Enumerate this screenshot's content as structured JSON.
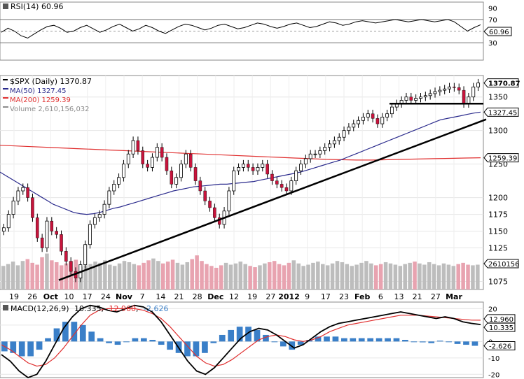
{
  "chart_data": {
    "type": "candlestick",
    "title": "$SPX (Daily) 1370.87",
    "legend": [
      {
        "label": "$SPX (Daily) 1370.87",
        "color": "#000000"
      },
      {
        "label": "MA(50) 1327.45",
        "color": "#2a2a8c"
      },
      {
        "label": "MA(200) 1259.39",
        "color": "#e03030"
      },
      {
        "label": "Volume 2,610,156,032",
        "color": "#8c8c8c"
      }
    ],
    "rsi": {
      "label": "RSI(14) 60.96",
      "value": 60.96,
      "ylim": [
        0,
        100
      ],
      "ticks": [
        "90",
        "70",
        "50",
        "30"
      ],
      "levels": [
        70,
        50,
        30
      ],
      "badge": "60.96",
      "values": [
        48,
        55,
        50,
        42,
        38,
        45,
        52,
        58,
        60,
        55,
        48,
        50,
        56,
        60,
        54,
        48,
        52,
        58,
        62,
        56,
        50,
        54,
        60,
        56,
        50,
        46,
        52,
        58,
        62,
        60,
        56,
        52,
        55,
        60,
        62,
        58,
        54,
        56,
        60,
        64,
        62,
        58,
        55,
        58,
        62,
        64,
        60,
        56,
        58,
        62,
        66,
        64,
        60,
        62,
        66,
        68,
        66,
        64,
        66,
        68,
        70,
        68,
        66,
        68,
        70,
        68,
        66,
        68,
        70,
        66,
        58,
        50,
        56,
        61
      ]
    },
    "price": {
      "ylim": [
        1063,
        1382
      ],
      "ticks": [
        "1350",
        "1300",
        "1250",
        "1200",
        "1175",
        "1150",
        "1125",
        "1075"
      ],
      "badges": [
        "1370.87",
        "1327.45",
        "1259.39",
        "2610156"
      ],
      "volume_max": 6.2,
      "closes": [
        1155,
        1175,
        1195,
        1210,
        1215,
        1200,
        1170,
        1140,
        1125,
        1165,
        1150,
        1145,
        1120,
        1105,
        1090,
        1080,
        1100,
        1130,
        1160,
        1170,
        1175,
        1190,
        1210,
        1220,
        1230,
        1250,
        1265,
        1285,
        1270,
        1250,
        1245,
        1260,
        1275,
        1260,
        1240,
        1220,
        1230,
        1250,
        1265,
        1245,
        1225,
        1210,
        1195,
        1185,
        1170,
        1160,
        1180,
        1210,
        1240,
        1245,
        1250,
        1245,
        1240,
        1245,
        1250,
        1235,
        1225,
        1220,
        1215,
        1210,
        1225,
        1240,
        1250,
        1258,
        1265,
        1265,
        1270,
        1275,
        1280,
        1285,
        1290,
        1300,
        1305,
        1310,
        1315,
        1320,
        1325,
        1318,
        1310,
        1320,
        1325,
        1335,
        1340,
        1345,
        1350,
        1345,
        1348,
        1350,
        1352,
        1355,
        1358,
        1360,
        1362,
        1365,
        1364,
        1360,
        1340,
        1350,
        1365,
        1370.87
      ],
      "ma50": [
        1238,
        1232,
        1226,
        1220,
        1214,
        1208,
        1202,
        1196,
        1190,
        1186,
        1182,
        1178,
        1176,
        1175,
        1176,
        1178,
        1181,
        1184,
        1186,
        1189,
        1192,
        1195,
        1198,
        1201,
        1204,
        1207,
        1210,
        1212,
        1214,
        1216,
        1217,
        1218,
        1219,
        1220,
        1220,
        1221,
        1222,
        1223,
        1224,
        1226,
        1228,
        1230,
        1232,
        1234,
        1236,
        1238,
        1241,
        1244,
        1247,
        1250,
        1253,
        1256,
        1260,
        1264,
        1268,
        1272,
        1276,
        1280,
        1284,
        1288,
        1292,
        1296,
        1300,
        1304,
        1308,
        1312,
        1316,
        1318,
        1320,
        1322,
        1324,
        1326,
        1327.45
      ],
      "ma200": [
        1278,
        1277,
        1276,
        1275,
        1274,
        1273,
        1272,
        1271,
        1270,
        1269,
        1268,
        1267,
        1266,
        1265,
        1264,
        1263,
        1262,
        1261,
        1260,
        1259,
        1258,
        1257,
        1256.5,
        1256,
        1256,
        1256.5,
        1257,
        1257.5,
        1258,
        1258.5,
        1259,
        1259.39
      ],
      "trendline_major": [
        [
          1077,
          "start"
        ],
        [
          1325,
          "end"
        ]
      ],
      "trendline_support": 1340,
      "volume": [
        3.8,
        4.1,
        4.5,
        3.9,
        4.6,
        4.9,
        4.3,
        4.0,
        5.2,
        5.8,
        4.7,
        4.4,
        3.9,
        4.2,
        4.6,
        4.8,
        3.7,
        3.9,
        4.1,
        4.5,
        4.3,
        4.7,
        4.0,
        3.8,
        4.2,
        4.6,
        4.4,
        4.1,
        3.9,
        4.3,
        4.7,
        5.0,
        4.6,
        4.2,
        4.5,
        4.8,
        4.3,
        4.0,
        4.4,
        4.9,
        5.5,
        4.6,
        4.1,
        3.8,
        3.5,
        3.9,
        4.3,
        4.0,
        4.2,
        4.5,
        4.1,
        3.8,
        3.6,
        3.9,
        4.2,
        4.4,
        4.6,
        4.1,
        3.9,
        4.3,
        4.7,
        4.2,
        3.8,
        4.0,
        4.3,
        4.5,
        4.1,
        3.9,
        4.2,
        4.6,
        4.4,
        4.1,
        3.8,
        4.0,
        4.3,
        4.6,
        4.2,
        3.9,
        4.1,
        4.4,
        4.2,
        4.0,
        3.8,
        4.1,
        4.3,
        4.5,
        4.2,
        4.0,
        4.4,
        4.1,
        3.9,
        4.2,
        4.0,
        3.8,
        4.1,
        4.3,
        4.0,
        3.9,
        4.0
      ]
    },
    "x_labels": [
      "19",
      "26",
      "Oct",
      "10",
      "17",
      "24",
      "Nov",
      "7",
      "14",
      "21",
      "28",
      "Dec",
      "12",
      "19",
      "27",
      "2012",
      "9",
      "17",
      "23",
      "Feb",
      "6",
      "13",
      "21",
      "27",
      "Mar"
    ],
    "x_labels_bold": [
      "Oct",
      "Nov",
      "Dec",
      "2012",
      "Feb",
      "Mar"
    ],
    "macd": {
      "label": "MACD(12,26,9)",
      "macd_value": "10.335",
      "signal_value": "12.960",
      "hist_value": "-2.626",
      "macd_color": "#000000",
      "signal_color": "#e03030",
      "hist_color": "#3a7fc8",
      "ylim": [
        -22,
        24
      ],
      "ticks": [
        "20",
        "10",
        "0",
        "-10",
        "-20"
      ],
      "badges": [
        "12.960",
        "10.335",
        "-2.626"
      ],
      "macd_line": [
        -8,
        -12,
        -18,
        -22,
        -20,
        -12,
        -2,
        8,
        15,
        20,
        22,
        21,
        19,
        18,
        20,
        22,
        21,
        18,
        12,
        4,
        -4,
        -12,
        -18,
        -20,
        -16,
        -10,
        -4,
        2,
        6,
        8,
        7,
        4,
        0,
        -4,
        -2,
        2,
        6,
        9,
        11,
        12,
        13,
        14,
        15,
        16,
        17,
        18,
        17,
        16,
        15,
        14,
        15,
        14,
        12,
        11,
        10.335
      ],
      "signal_line": [
        -2,
        -5,
        -9,
        -13,
        -15,
        -14,
        -10,
        -4,
        3,
        10,
        16,
        19,
        20,
        20,
        20,
        20,
        19,
        17,
        14,
        9,
        3,
        -3,
        -9,
        -13,
        -15,
        -14,
        -11,
        -7,
        -3,
        1,
        3,
        4,
        3,
        1,
        0,
        1,
        3,
        6,
        8,
        10,
        11,
        12,
        13,
        14,
        15,
        16,
        16,
        16,
        15.5,
        15,
        14.5,
        14,
        13.5,
        13,
        12.96
      ],
      "histogram": [
        -6,
        -7,
        -9,
        -9,
        -5,
        2,
        8,
        12,
        12,
        10,
        6,
        2,
        -1,
        -2,
        0,
        2,
        2,
        1,
        -2,
        -5,
        -7,
        -9,
        -9,
        -7,
        -1,
        4,
        7,
        9,
        9,
        7,
        4,
        0,
        -3,
        -5,
        -2,
        1,
        3,
        3,
        3,
        2,
        2,
        2,
        2,
        2,
        2,
        2,
        1,
        0,
        -0.5,
        -1,
        0.5,
        0,
        -1.5,
        -2,
        -2.626
      ]
    }
  }
}
